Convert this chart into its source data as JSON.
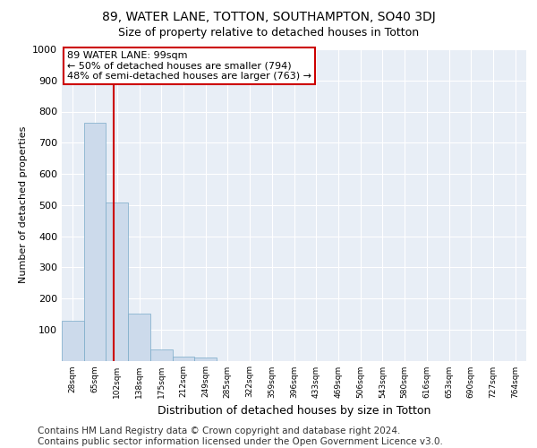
{
  "title_line1": "89, WATER LANE, TOTTON, SOUTHAMPTON, SO40 3DJ",
  "title_line2": "Size of property relative to detached houses in Totton",
  "xlabel": "Distribution of detached houses by size in Totton",
  "ylabel": "Number of detached properties",
  "footer_line1": "Contains HM Land Registry data © Crown copyright and database right 2024.",
  "footer_line2": "Contains public sector information licensed under the Open Government Licence v3.0.",
  "annotation_line1": "89 WATER LANE: 99sqm",
  "annotation_line2": "← 50% of detached houses are smaller (794)",
  "annotation_line3": "48% of semi-detached houses are larger (763) →",
  "bin_labels": [
    "28sqm",
    "65sqm",
    "102sqm",
    "138sqm",
    "175sqm",
    "212sqm",
    "249sqm",
    "285sqm",
    "322sqm",
    "359sqm",
    "396sqm",
    "433sqm",
    "469sqm",
    "506sqm",
    "543sqm",
    "580sqm",
    "616sqm",
    "653sqm",
    "690sqm",
    "727sqm",
    "764sqm"
  ],
  "bar_values": [
    128,
    765,
    507,
    152,
    37,
    14,
    9,
    0,
    0,
    0,
    0,
    0,
    0,
    0,
    0,
    0,
    0,
    0,
    0,
    0,
    0
  ],
  "bar_color": "#ccdaeb",
  "bar_edge_color": "#7aaac8",
  "redline_x": 1.85,
  "ylim": [
    0,
    1000
  ],
  "yticks": [
    0,
    100,
    200,
    300,
    400,
    500,
    600,
    700,
    800,
    900,
    1000
  ],
  "bg_color": "#e8eef6",
  "grid_color": "#ffffff",
  "annotation_box_color": "#ffffff",
  "annotation_box_edge": "#cc0000",
  "redline_color": "#cc0000",
  "title1_fontsize": 10,
  "title2_fontsize": 9,
  "ylabel_fontsize": 8,
  "xlabel_fontsize": 9,
  "footer_fontsize": 7.5
}
